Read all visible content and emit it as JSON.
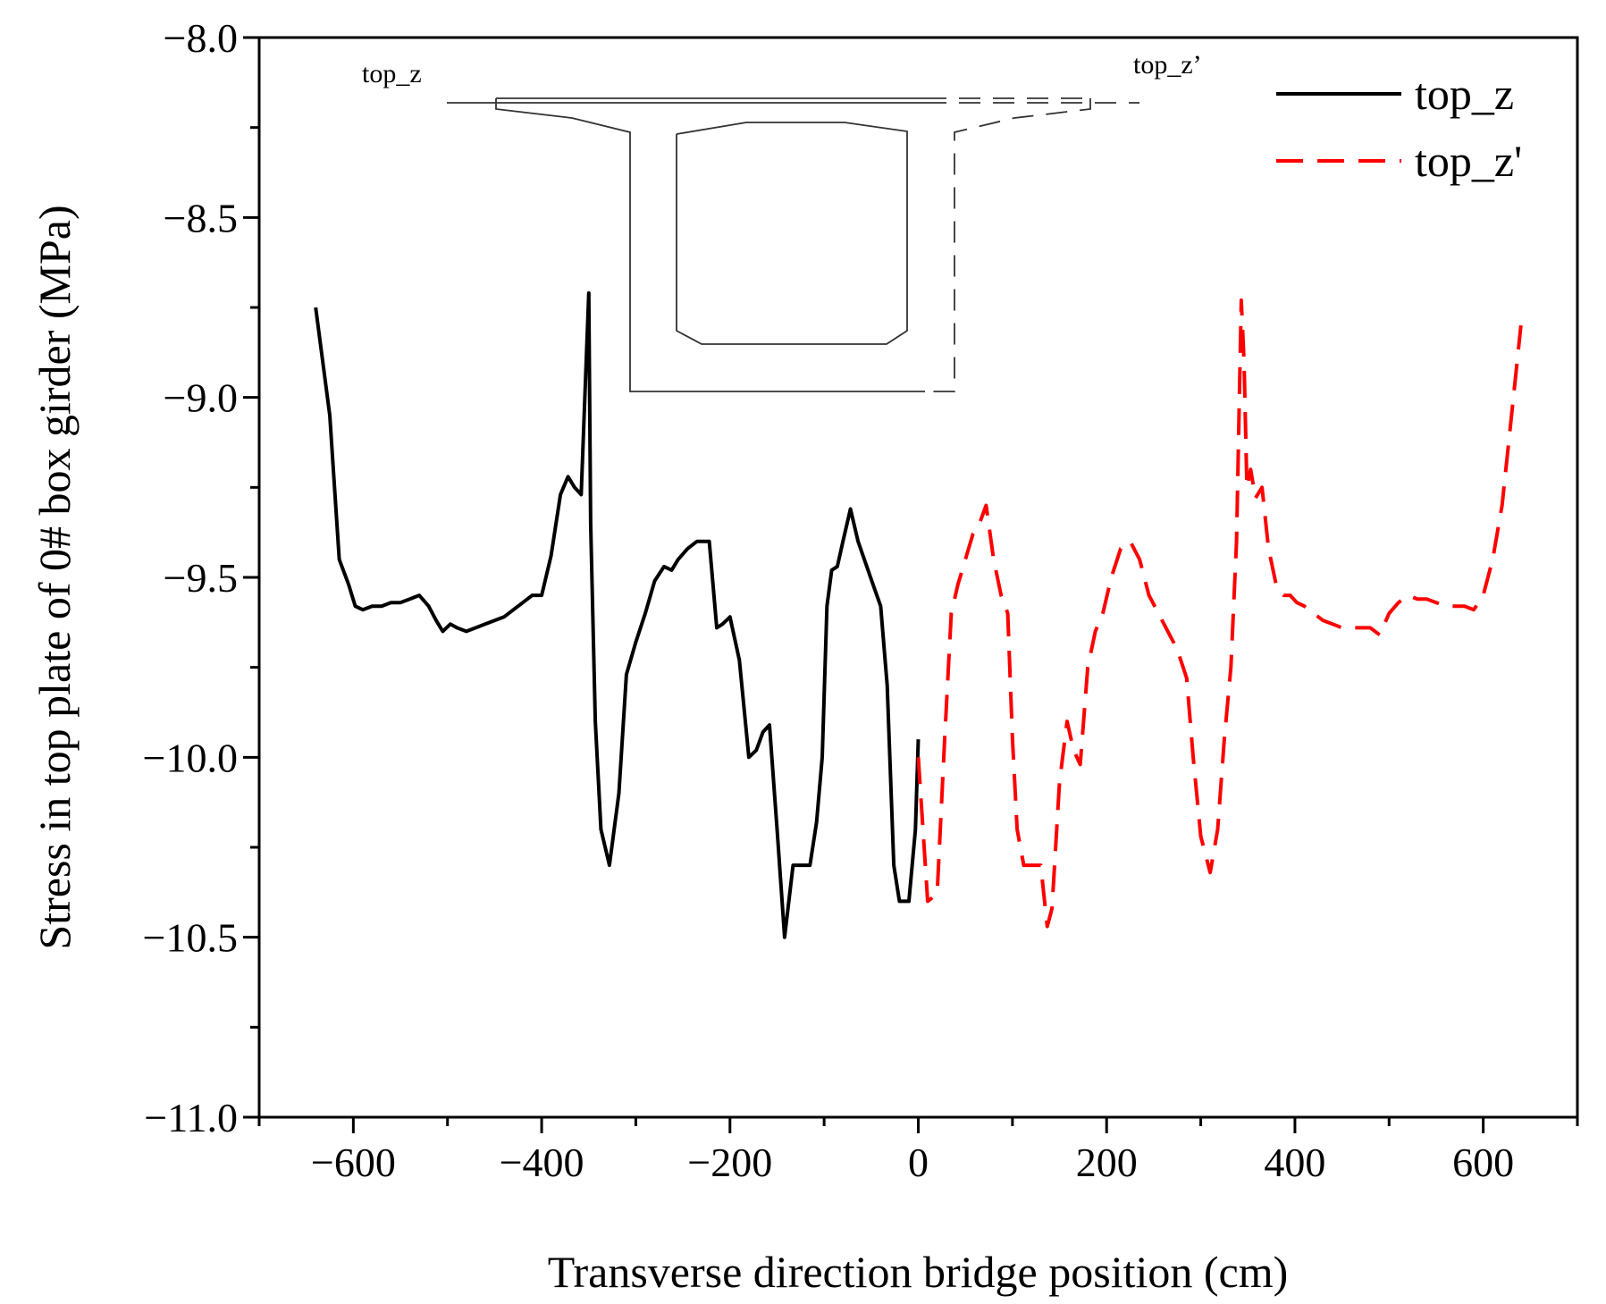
{
  "chart_data": {
    "type": "line",
    "title": "",
    "xlabel": "Transverse direction bridge position (cm)",
    "ylabel": "Stress in top plate of 0# box girder (MPa)",
    "xlim": [
      -700,
      700
    ],
    "ylim": [
      -11.0,
      -8.0
    ],
    "xticks": [
      -600,
      -400,
      -200,
      0,
      200,
      400,
      600
    ],
    "yticks": [
      -8.0,
      -8.5,
      -9.0,
      -9.5,
      -10.0,
      -10.5,
      -11.0
    ],
    "xtick_labels": [
      "−600",
      "−400",
      "−200",
      "0",
      "200",
      "400",
      "600"
    ],
    "ytick_labels": [
      "−8.0",
      "−8.5",
      "−9.0",
      "−9.5",
      "−10.0",
      "−10.5",
      "−11.0"
    ],
    "legend_position": "top-right",
    "series": [
      {
        "name": "top_z",
        "color": "#000000",
        "style": "solid",
        "x": [
          -640,
          -625,
          -615,
          -605,
          -598,
          -590,
          -580,
          -570,
          -560,
          -550,
          -540,
          -530,
          -520,
          -512,
          -505,
          -497,
          -490,
          -480,
          -470,
          -460,
          -450,
          -440,
          -430,
          -420,
          -410,
          -400,
          -390,
          -380,
          -372,
          -365,
          -358,
          -350,
          -348,
          -343,
          -337,
          -328,
          -318,
          -310,
          -300,
          -290,
          -280,
          -270,
          -262,
          -255,
          -245,
          -235,
          -222,
          -214,
          -208,
          -200,
          -190,
          -180,
          -172,
          -165,
          -158,
          -150,
          -142,
          -133,
          -125,
          -115,
          -108,
          -102,
          -97,
          -92,
          -86,
          -80,
          -72,
          -64,
          -56,
          -48,
          -40,
          -33,
          -26,
          -20,
          -15,
          -10,
          -3,
          0
        ],
        "y": [
          -8.75,
          -9.05,
          -9.45,
          -9.52,
          -9.58,
          -9.59,
          -9.58,
          -9.58,
          -9.57,
          -9.57,
          -9.56,
          -9.55,
          -9.58,
          -9.62,
          -9.65,
          -9.63,
          -9.64,
          -9.65,
          -9.64,
          -9.63,
          -9.62,
          -9.61,
          -9.59,
          -9.57,
          -9.55,
          -9.55,
          -9.44,
          -9.27,
          -9.22,
          -9.25,
          -9.27,
          -8.71,
          -9.35,
          -9.9,
          -10.2,
          -10.3,
          -10.1,
          -9.77,
          -9.68,
          -9.6,
          -9.51,
          -9.47,
          -9.48,
          -9.45,
          -9.42,
          -9.4,
          -9.4,
          -9.64,
          -9.63,
          -9.61,
          -9.73,
          -10.0,
          -9.98,
          -9.93,
          -9.91,
          -10.2,
          -10.5,
          -10.3,
          -10.3,
          -10.3,
          -10.18,
          -10.0,
          -9.58,
          -9.48,
          -9.47,
          -9.4,
          -9.31,
          -9.4,
          -9.46,
          -9.52,
          -9.58,
          -9.8,
          -10.3,
          -10.4,
          -10.4,
          -10.4,
          -10.2,
          -9.95
        ]
      },
      {
        "name": "top_z'",
        "color": "#ff0000",
        "style": "dashed",
        "x": [
          0,
          10,
          20,
          28,
          35,
          42,
          50,
          58,
          65,
          72,
          80,
          88,
          95,
          100,
          105,
          112,
          120,
          130,
          137,
          142,
          150,
          158,
          165,
          172,
          180,
          188,
          196,
          205,
          215,
          225,
          235,
          245,
          255,
          265,
          275,
          285,
          292,
          300,
          310,
          318,
          325,
          332,
          338,
          343,
          346,
          349,
          353,
          358,
          365,
          372,
          380,
          388,
          395,
          402,
          410,
          420,
          430,
          440,
          450,
          460,
          470,
          480,
          490,
          500,
          510,
          520,
          530,
          540,
          550,
          560,
          570,
          580,
          590,
          600,
          610,
          620,
          630,
          640
        ],
        "y": [
          -10.0,
          -10.4,
          -10.38,
          -9.95,
          -9.6,
          -9.52,
          -9.45,
          -9.38,
          -9.35,
          -9.3,
          -9.45,
          -9.55,
          -9.6,
          -9.95,
          -10.2,
          -10.3,
          -10.3,
          -10.3,
          -10.47,
          -10.42,
          -10.07,
          -9.9,
          -9.98,
          -10.02,
          -9.75,
          -9.65,
          -9.6,
          -9.5,
          -9.42,
          -9.4,
          -9.45,
          -9.55,
          -9.6,
          -9.65,
          -9.7,
          -9.78,
          -10.0,
          -10.22,
          -10.32,
          -10.2,
          -9.95,
          -9.75,
          -9.4,
          -8.73,
          -8.9,
          -9.25,
          -9.2,
          -9.28,
          -9.25,
          -9.42,
          -9.52,
          -9.55,
          -9.55,
          -9.57,
          -9.58,
          -9.6,
          -9.62,
          -9.63,
          -9.64,
          -9.64,
          -9.64,
          -9.64,
          -9.66,
          -9.6,
          -9.57,
          -9.55,
          -9.56,
          -9.56,
          -9.57,
          -9.58,
          -9.58,
          -9.58,
          -9.59,
          -9.55,
          -9.45,
          -9.3,
          -9.05,
          -8.8
        ]
      }
    ],
    "inset": {
      "description_labels": {
        "left": "top_z",
        "right": "top_z’"
      }
    }
  }
}
